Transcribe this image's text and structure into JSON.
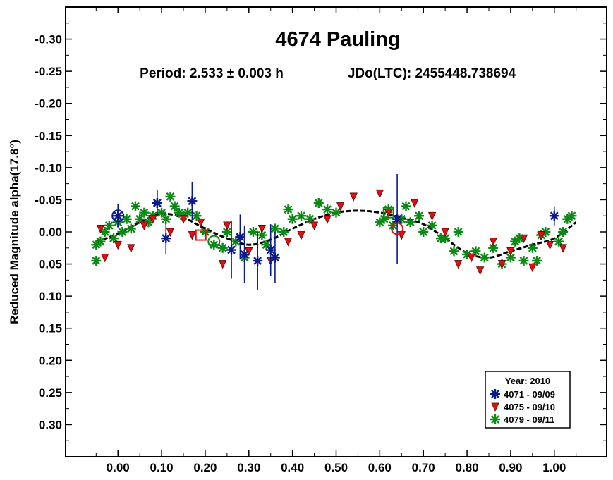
{
  "chart_data": {
    "type": "scatter",
    "title": "4674 Pauling",
    "subtitle_period": "Period: 2.533 ± 0.003 h",
    "subtitle_epoch": "JDo(LTC): 2455448.738694",
    "ylabel": "Reduced Magnitude alpha(17.8°)",
    "xlabel": "",
    "xlim": [
      -0.12,
      1.12
    ],
    "ylim": [
      -0.35,
      0.35
    ],
    "y_inverted": true,
    "grid": false,
    "legend_position": "bottom-right",
    "x_ticks": [
      0.0,
      0.1,
      0.2,
      0.3,
      0.4,
      0.5,
      0.6,
      0.7,
      0.8,
      0.9,
      1.0
    ],
    "x_tick_labels": [
      "0.00",
      "0.10",
      "0.20",
      "0.30",
      "0.40",
      "0.50",
      "0.60",
      "0.70",
      "0.80",
      "0.90",
      "1.00"
    ],
    "y_ticks": [
      -0.3,
      -0.25,
      -0.2,
      -0.15,
      -0.1,
      -0.05,
      0.0,
      0.05,
      0.1,
      0.15,
      0.2,
      0.25,
      0.3
    ],
    "y_tick_labels": [
      "-0.30",
      "-0.25",
      "-0.20",
      "-0.15",
      "-0.10",
      "-0.05",
      "0.00",
      "0.05",
      "0.10",
      "0.15",
      "0.20",
      "0.25",
      "0.30"
    ],
    "legend_title": "Year: 2010",
    "series": [
      {
        "name": "4071 - 09/09",
        "marker": "asterisk",
        "color": "#0a1a8c",
        "error_bars": true,
        "x": [
          0.0,
          0.09,
          0.11,
          0.17,
          0.26,
          0.28,
          0.29,
          0.32,
          0.35,
          0.36,
          0.64,
          1.0
        ],
        "y": [
          -0.025,
          -0.045,
          0.01,
          -0.048,
          0.028,
          0.008,
          0.035,
          0.045,
          0.028,
          0.04,
          -0.02,
          -0.025
        ],
        "err": [
          0.018,
          0.02,
          0.025,
          0.03,
          0.045,
          0.035,
          0.045,
          0.045,
          0.04,
          0.04,
          0.07,
          0.015
        ]
      },
      {
        "name": "4075 - 09/10",
        "marker": "triangle-down",
        "color": "#e01010",
        "error_bars": false,
        "x": [
          -0.04,
          -0.03,
          0.0,
          0.03,
          0.06,
          0.08,
          0.12,
          0.15,
          0.17,
          0.19,
          0.24,
          0.25,
          0.28,
          0.3,
          0.33,
          0.35,
          0.39,
          0.42,
          0.45,
          0.48,
          0.51,
          0.54,
          0.6,
          0.62,
          0.65,
          0.68,
          0.72,
          0.75,
          0.78,
          0.81,
          0.83,
          0.86,
          0.88,
          0.9,
          0.93,
          0.95,
          0.97,
          0.99,
          1.02
        ],
        "y": [
          -0.005,
          0.04,
          0.02,
          0.025,
          -0.01,
          -0.02,
          0.0,
          -0.02,
          0.005,
          -0.015,
          0.05,
          -0.01,
          0.01,
          0.03,
          -0.005,
          0.045,
          0.015,
          0.005,
          -0.01,
          -0.02,
          -0.04,
          -0.055,
          -0.06,
          -0.03,
          0.005,
          -0.045,
          -0.025,
          0.0,
          0.05,
          0.04,
          0.06,
          0.015,
          0.05,
          0.03,
          0.01,
          0.055,
          0.005,
          0.02,
          0.025
        ]
      },
      {
        "name": "4079 - 09/11",
        "marker": "asterisk",
        "color": "#0a8a14",
        "error_bars": false,
        "x": [
          -0.05,
          -0.05,
          -0.04,
          -0.03,
          -0.02,
          -0.01,
          0.0,
          0.01,
          0.02,
          0.03,
          0.04,
          0.05,
          0.06,
          0.07,
          0.08,
          0.09,
          0.1,
          0.11,
          0.12,
          0.13,
          0.14,
          0.15,
          0.16,
          0.18,
          0.2,
          0.22,
          0.24,
          0.25,
          0.27,
          0.29,
          0.31,
          0.33,
          0.34,
          0.36,
          0.38,
          0.39,
          0.4,
          0.42,
          0.44,
          0.46,
          0.48,
          0.5,
          0.6,
          0.61,
          0.62,
          0.63,
          0.65,
          0.66,
          0.67,
          0.69,
          0.7,
          0.72,
          0.74,
          0.75,
          0.77,
          0.78,
          0.8,
          0.82,
          0.84,
          0.86,
          0.88,
          0.9,
          0.91,
          0.92,
          0.93,
          0.95,
          0.96,
          0.97,
          0.98,
          1.01,
          1.02,
          1.03,
          1.04
        ],
        "y": [
          0.045,
          0.02,
          0.015,
          0.0,
          -0.01,
          0.01,
          -0.015,
          0.0,
          -0.02,
          -0.005,
          -0.04,
          -0.02,
          -0.03,
          -0.015,
          -0.025,
          -0.045,
          -0.03,
          -0.02,
          -0.055,
          -0.04,
          -0.03,
          -0.025,
          -0.03,
          -0.025,
          0.0,
          0.02,
          0.025,
          0.0,
          0.015,
          0.04,
          0.0,
          0.005,
          0.02,
          -0.005,
          0.0,
          -0.035,
          -0.02,
          -0.025,
          -0.02,
          -0.045,
          -0.035,
          -0.03,
          -0.015,
          -0.02,
          -0.035,
          -0.01,
          -0.02,
          -0.04,
          -0.015,
          -0.025,
          0.0,
          -0.01,
          0.01,
          0.01,
          0.03,
          0.0,
          0.035,
          0.03,
          0.04,
          0.025,
          0.05,
          0.04,
          0.015,
          0.01,
          0.045,
          0.025,
          0.045,
          0.005,
          0.0,
          0.015,
          0.0,
          -0.02,
          -0.025
        ],
        "err": []
      }
    ],
    "fit_curve": {
      "color": "#000000",
      "x": [
        -0.05,
        0.0,
        0.05,
        0.1,
        0.15,
        0.2,
        0.25,
        0.3,
        0.35,
        0.4,
        0.45,
        0.5,
        0.55,
        0.6,
        0.65,
        0.7,
        0.75,
        0.8,
        0.85,
        0.9,
        0.95,
        1.0,
        1.05
      ],
      "y": [
        0.015,
        0.003,
        -0.015,
        -0.028,
        -0.022,
        -0.005,
        0.01,
        0.02,
        0.012,
        -0.005,
        -0.02,
        -0.03,
        -0.033,
        -0.03,
        -0.022,
        -0.012,
        0.01,
        0.033,
        0.04,
        0.03,
        0.02,
        0.01,
        -0.015
      ]
    },
    "reference_points": {
      "x": [
        0.0,
        0.19,
        0.22,
        0.62,
        0.64
      ],
      "y": [
        -0.025,
        0.005,
        0.015,
        -0.03,
        -0.005
      ],
      "colors": [
        "#0a1a8c",
        "#e01010",
        "#0a8a14",
        "#0a8a14",
        "#e01010"
      ]
    }
  }
}
